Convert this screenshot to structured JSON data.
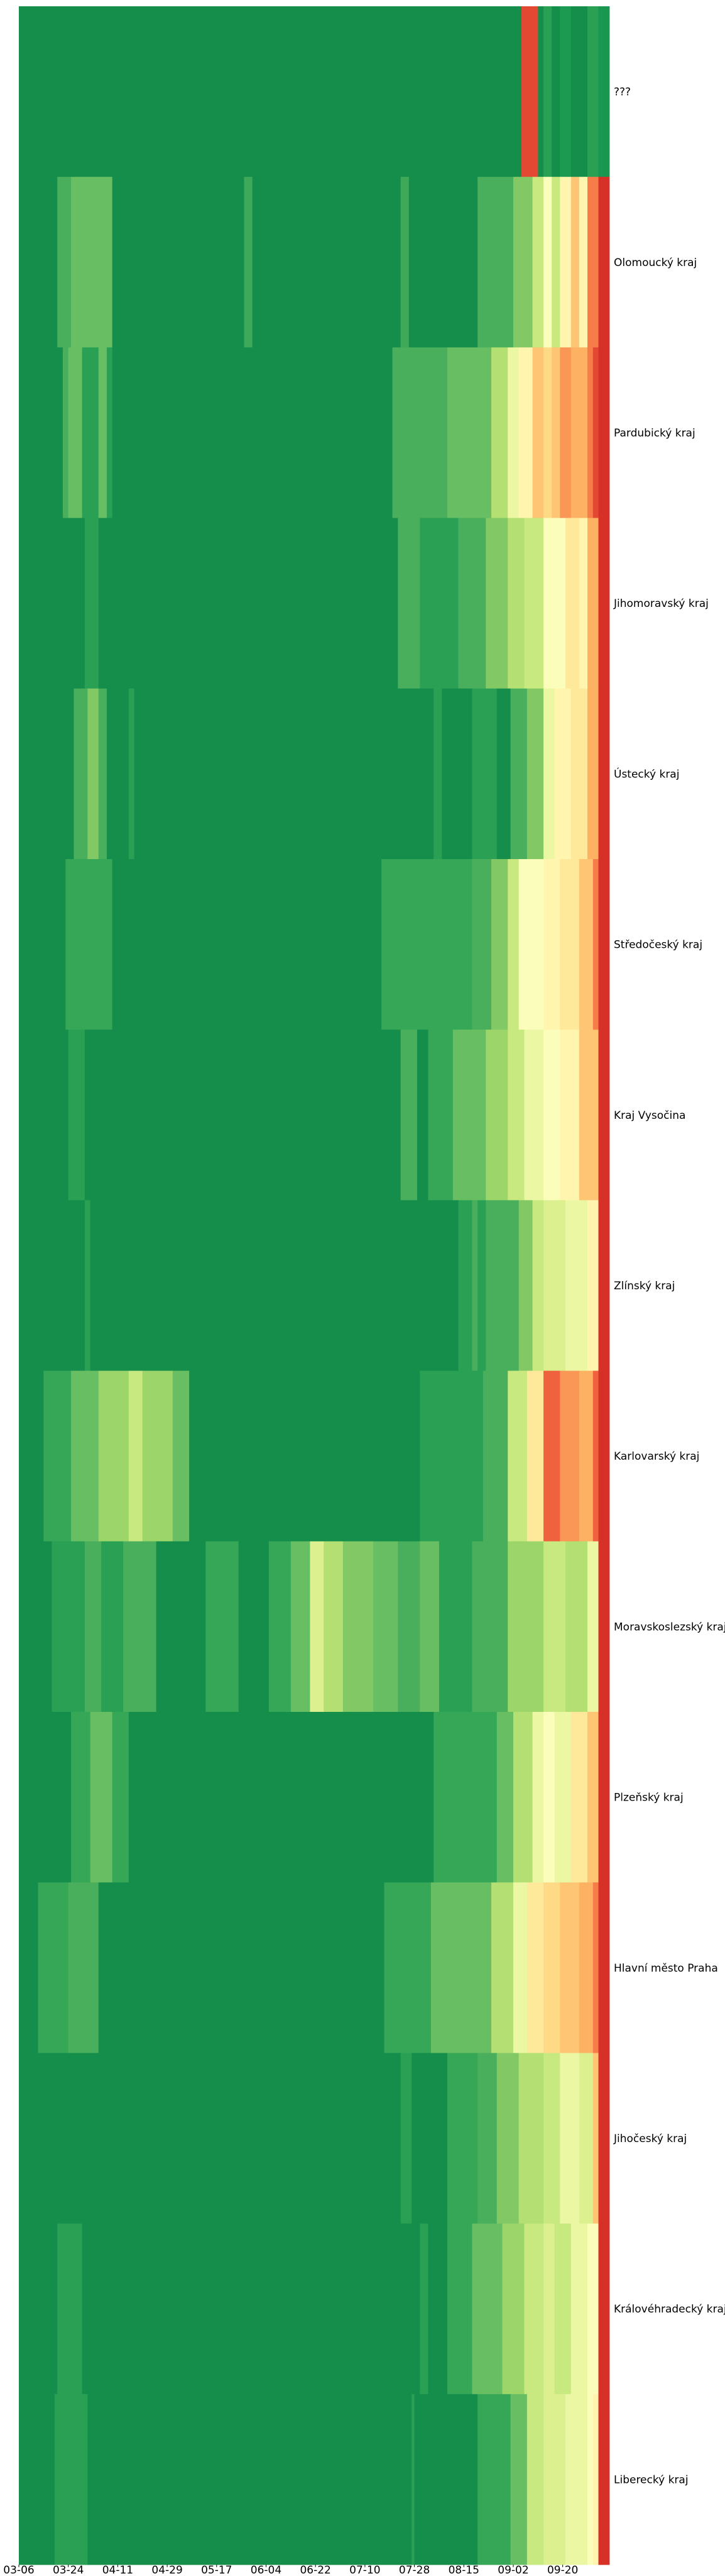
{
  "chart_data": {
    "type": "heatmap",
    "title": "",
    "xlabel": "",
    "ylabel": "",
    "colormap": "RdYlGn_r",
    "x_start": "03-06",
    "x_end": "10-07",
    "x_tick_labels": [
      "03-06",
      "03-24",
      "04-11",
      "04-29",
      "05-17",
      "06-04",
      "06-22",
      "07-10",
      "07-28",
      "08-15",
      "09-02",
      "09-20"
    ],
    "value_range": [
      0,
      1
    ],
    "rows": [
      {
        "label": "???",
        "segments": [
          [
            "03-06",
            0.0
          ],
          [
            "09-05",
            0.95
          ],
          [
            "09-11",
            0.0
          ],
          [
            "09-13",
            0.05
          ],
          [
            "09-16",
            0.0
          ],
          [
            "09-19",
            0.03
          ],
          [
            "09-23",
            0.0
          ],
          [
            "09-29",
            0.05
          ],
          [
            "10-03",
            0.02
          ]
        ]
      },
      {
        "label": "Olomoucký kraj",
        "segments": [
          [
            "03-06",
            0.0
          ],
          [
            "03-20",
            0.1
          ],
          [
            "03-25",
            0.15
          ],
          [
            "04-09",
            0.0
          ],
          [
            "05-27",
            0.08
          ],
          [
            "05-30",
            0.0
          ],
          [
            "07-23",
            0.08
          ],
          [
            "07-26",
            0.0
          ],
          [
            "08-20",
            0.1
          ],
          [
            "09-02",
            0.2
          ],
          [
            "09-09",
            0.35
          ],
          [
            "09-13",
            0.5
          ],
          [
            "09-16",
            0.35
          ],
          [
            "09-19",
            0.55
          ],
          [
            "09-23",
            0.7
          ],
          [
            "09-26",
            0.55
          ],
          [
            "09-29",
            0.85
          ],
          [
            "10-03",
            1.0
          ]
        ]
      },
      {
        "label": "Pardubický kraj",
        "segments": [
          [
            "03-06",
            0.0
          ],
          [
            "03-22",
            0.1
          ],
          [
            "03-24",
            0.15
          ],
          [
            "03-29",
            0.05
          ],
          [
            "04-04",
            0.15
          ],
          [
            "04-07",
            0.05
          ],
          [
            "04-09",
            0.0
          ],
          [
            "07-20",
            0.1
          ],
          [
            "08-09",
            0.15
          ],
          [
            "08-25",
            0.3
          ],
          [
            "08-31",
            0.45
          ],
          [
            "09-04",
            0.55
          ],
          [
            "09-09",
            0.7
          ],
          [
            "09-13",
            0.65
          ],
          [
            "09-16",
            0.7
          ],
          [
            "09-19",
            0.8
          ],
          [
            "09-23",
            0.75
          ],
          [
            "09-29",
            0.85
          ],
          [
            "10-01",
            0.95
          ],
          [
            "10-03",
            1.0
          ]
        ]
      },
      {
        "label": "Jihomoravský kraj",
        "segments": [
          [
            "03-06",
            0.0
          ],
          [
            "03-30",
            0.05
          ],
          [
            "04-04",
            0.0
          ],
          [
            "07-22",
            0.1
          ],
          [
            "07-30",
            0.05
          ],
          [
            "08-13",
            0.1
          ],
          [
            "08-23",
            0.2
          ],
          [
            "08-31",
            0.3
          ],
          [
            "09-06",
            0.35
          ],
          [
            "09-13",
            0.5
          ],
          [
            "09-21",
            0.6
          ],
          [
            "09-26",
            0.55
          ],
          [
            "09-29",
            0.75
          ],
          [
            "10-03",
            1.0
          ]
        ]
      },
      {
        "label": "Ústecký kraj",
        "segments": [
          [
            "03-06",
            0.0
          ],
          [
            "03-26",
            0.1
          ],
          [
            "03-31",
            0.2
          ],
          [
            "04-04",
            0.1
          ],
          [
            "04-07",
            0.0
          ],
          [
            "04-15",
            0.05
          ],
          [
            "04-17",
            0.0
          ],
          [
            "08-04",
            0.05
          ],
          [
            "08-07",
            0.0
          ],
          [
            "08-18",
            0.05
          ],
          [
            "08-27",
            0.0
          ],
          [
            "09-01",
            0.1
          ],
          [
            "09-07",
            0.2
          ],
          [
            "09-13",
            0.45
          ],
          [
            "09-17",
            0.55
          ],
          [
            "09-23",
            0.6
          ],
          [
            "09-29",
            0.75
          ],
          [
            "10-03",
            1.0
          ]
        ]
      },
      {
        "label": "Středočeský kraj",
        "segments": [
          [
            "03-06",
            0.0
          ],
          [
            "03-23",
            0.07
          ],
          [
            "04-09",
            0.0
          ],
          [
            "07-16",
            0.07
          ],
          [
            "08-18",
            0.1
          ],
          [
            "08-25",
            0.2
          ],
          [
            "08-31",
            0.35
          ],
          [
            "09-04",
            0.5
          ],
          [
            "09-13",
            0.55
          ],
          [
            "09-19",
            0.6
          ],
          [
            "09-26",
            0.7
          ],
          [
            "10-01",
            0.85
          ],
          [
            "10-03",
            1.0
          ]
        ]
      },
      {
        "label": "Kraj Vysočina",
        "segments": [
          [
            "03-06",
            0.0
          ],
          [
            "03-24",
            0.05
          ],
          [
            "03-30",
            0.0
          ],
          [
            "07-23",
            0.1
          ],
          [
            "07-29",
            0.0
          ],
          [
            "08-02",
            0.07
          ],
          [
            "08-11",
            0.15
          ],
          [
            "08-23",
            0.25
          ],
          [
            "08-31",
            0.35
          ],
          [
            "09-06",
            0.45
          ],
          [
            "09-13",
            0.5
          ],
          [
            "09-19",
            0.55
          ],
          [
            "09-26",
            0.7
          ],
          [
            "10-03",
            1.0
          ]
        ]
      },
      {
        "label": "Zlínský kraj",
        "segments": [
          [
            "03-06",
            0.0
          ],
          [
            "03-30",
            0.05
          ],
          [
            "04-01",
            0.0
          ],
          [
            "08-13",
            0.05
          ],
          [
            "08-18",
            0.1
          ],
          [
            "08-20",
            0.05
          ],
          [
            "08-23",
            0.1
          ],
          [
            "09-04",
            0.2
          ],
          [
            "09-09",
            0.35
          ],
          [
            "09-13",
            0.4
          ],
          [
            "09-21",
            0.45
          ],
          [
            "09-29",
            0.55
          ],
          [
            "10-03",
            1.0
          ]
        ]
      },
      {
        "label": "Karlovarský kraj",
        "segments": [
          [
            "03-06",
            0.0
          ],
          [
            "03-15",
            0.07
          ],
          [
            "03-25",
            0.15
          ],
          [
            "04-04",
            0.25
          ],
          [
            "04-15",
            0.35
          ],
          [
            "04-20",
            0.25
          ],
          [
            "05-01",
            0.15
          ],
          [
            "05-07",
            0.0
          ],
          [
            "07-30",
            0.05
          ],
          [
            "08-22",
            0.1
          ],
          [
            "08-31",
            0.35
          ],
          [
            "09-07",
            0.6
          ],
          [
            "09-13",
            0.9
          ],
          [
            "09-19",
            0.8
          ],
          [
            "09-26",
            0.75
          ],
          [
            "10-01",
            0.9
          ],
          [
            "10-03",
            1.0
          ]
        ]
      },
      {
        "label": "Moravskoslezský kraj",
        "segments": [
          [
            "03-06",
            0.0
          ],
          [
            "03-18",
            0.05
          ],
          [
            "03-30",
            0.1
          ],
          [
            "04-05",
            0.05
          ],
          [
            "04-13",
            0.1
          ],
          [
            "04-25",
            0.0
          ],
          [
            "05-13",
            0.07
          ],
          [
            "05-25",
            0.0
          ],
          [
            "06-05",
            0.07
          ],
          [
            "06-13",
            0.15
          ],
          [
            "06-20",
            0.4
          ],
          [
            "06-25",
            0.3
          ],
          [
            "07-02",
            0.2
          ],
          [
            "07-13",
            0.15
          ],
          [
            "07-22",
            0.1
          ],
          [
            "07-30",
            0.15
          ],
          [
            "08-06",
            0.05
          ],
          [
            "08-18",
            0.1
          ],
          [
            "08-31",
            0.25
          ],
          [
            "09-13",
            0.35
          ],
          [
            "09-21",
            0.3
          ],
          [
            "09-29",
            0.45
          ],
          [
            "10-03",
            1.0
          ]
        ]
      },
      {
        "label": "Plzeňský kraj",
        "segments": [
          [
            "03-06",
            0.0
          ],
          [
            "03-25",
            0.07
          ],
          [
            "04-01",
            0.15
          ],
          [
            "04-09",
            0.07
          ],
          [
            "04-15",
            0.0
          ],
          [
            "08-04",
            0.07
          ],
          [
            "08-27",
            0.15
          ],
          [
            "09-02",
            0.3
          ],
          [
            "09-09",
            0.45
          ],
          [
            "09-13",
            0.5
          ],
          [
            "09-17",
            0.45
          ],
          [
            "09-23",
            0.6
          ],
          [
            "09-29",
            0.7
          ],
          [
            "10-03",
            1.0
          ]
        ]
      },
      {
        "label": "Hlavní město Praha",
        "segments": [
          [
            "03-06",
            0.0
          ],
          [
            "03-13",
            0.07
          ],
          [
            "03-24",
            0.1
          ],
          [
            "04-04",
            0.0
          ],
          [
            "07-17",
            0.07
          ],
          [
            "08-03",
            0.15
          ],
          [
            "08-25",
            0.3
          ],
          [
            "09-02",
            0.45
          ],
          [
            "09-07",
            0.6
          ],
          [
            "09-13",
            0.65
          ],
          [
            "09-19",
            0.7
          ],
          [
            "09-26",
            0.75
          ],
          [
            "10-01",
            0.85
          ],
          [
            "10-03",
            1.0
          ]
        ]
      },
      {
        "label": "Jihočeský kraj",
        "segments": [
          [
            "03-06",
            0.0
          ],
          [
            "07-23",
            0.05
          ],
          [
            "07-27",
            0.0
          ],
          [
            "08-09",
            0.07
          ],
          [
            "08-20",
            0.1
          ],
          [
            "08-27",
            0.2
          ],
          [
            "09-04",
            0.3
          ],
          [
            "09-13",
            0.35
          ],
          [
            "09-19",
            0.45
          ],
          [
            "09-26",
            0.4
          ],
          [
            "10-01",
            0.7
          ],
          [
            "10-03",
            1.0
          ]
        ]
      },
      {
        "label": "Královéhradecký kraj",
        "segments": [
          [
            "03-06",
            0.0
          ],
          [
            "03-20",
            0.05
          ],
          [
            "03-29",
            0.0
          ],
          [
            "07-30",
            0.05
          ],
          [
            "08-02",
            0.0
          ],
          [
            "08-09",
            0.07
          ],
          [
            "08-18",
            0.15
          ],
          [
            "08-29",
            0.25
          ],
          [
            "09-06",
            0.35
          ],
          [
            "09-13",
            0.4
          ],
          [
            "09-17",
            0.35
          ],
          [
            "09-23",
            0.45
          ],
          [
            "09-29",
            0.5
          ],
          [
            "10-03",
            1.0
          ]
        ]
      },
      {
        "label": "Liberecký kraj",
        "segments": [
          [
            "03-06",
            0.0
          ],
          [
            "03-19",
            0.05
          ],
          [
            "03-31",
            0.0
          ],
          [
            "07-27",
            0.05
          ],
          [
            "07-28",
            0.0
          ],
          [
            "08-20",
            0.07
          ],
          [
            "09-01",
            0.15
          ],
          [
            "09-07",
            0.35
          ],
          [
            "09-13",
            0.4
          ],
          [
            "09-21",
            0.45
          ],
          [
            "09-29",
            0.5
          ],
          [
            "10-01",
            0.55
          ],
          [
            "10-03",
            1.0
          ]
        ]
      }
    ]
  }
}
